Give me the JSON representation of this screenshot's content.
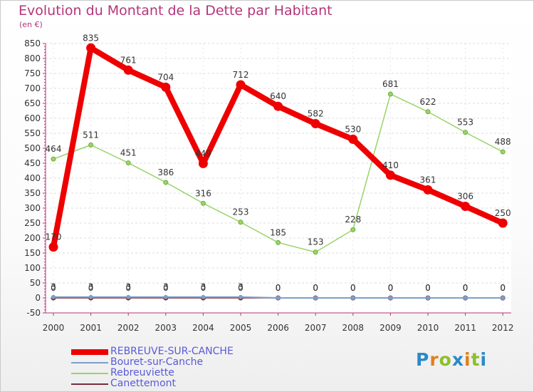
{
  "title": "Evolution du Montant de la Dette par Habitant",
  "subtitle": "(en €)",
  "logo": {
    "letters": [
      "P",
      "r",
      "o",
      "x",
      "i",
      "t",
      "i"
    ],
    "colors": [
      "#2a8ac9",
      "#e0801c",
      "#8bbf2c",
      "#2a8ac9",
      "#e0801c",
      "#8bbf2c",
      "#2a8ac9"
    ]
  },
  "chart_data": {
    "type": "line",
    "title": "Evolution du Montant de la Dette par Habitant",
    "ylabel": "(en €)",
    "xlabel": "",
    "ylim": [
      -50,
      850
    ],
    "yticks": [
      -50,
      0,
      50,
      100,
      150,
      200,
      250,
      300,
      350,
      400,
      450,
      500,
      550,
      600,
      650,
      700,
      750,
      800,
      850
    ],
    "categories": [
      "2000",
      "2001",
      "2002",
      "2003",
      "2004",
      "2005",
      "2006",
      "2007",
      "2008",
      "2009",
      "2010",
      "2011",
      "2012"
    ],
    "series": [
      {
        "name": "REBREUVE-SUR-CANCHE",
        "color": "#ee0000",
        "values": [
          170,
          835,
          761,
          704,
          449,
          712,
          640,
          582,
          530,
          410,
          361,
          306,
          250
        ],
        "labels": [
          "170",
          "835",
          "761",
          "704",
          "449",
          "712",
          "640",
          "582",
          "530",
          "410",
          "361",
          "306",
          "250"
        ]
      },
      {
        "name": "Bouret-sur-Canche",
        "color": "#7aa0c8",
        "values": [
          3,
          3,
          3,
          3,
          3,
          3,
          0,
          0,
          0,
          0,
          0,
          0,
          0
        ],
        "labels": [
          "3",
          "3",
          "3",
          "3",
          "3",
          "3",
          "0",
          "0",
          "0",
          "0",
          "0",
          "0",
          "0"
        ]
      },
      {
        "name": "Rebreuviette",
        "color": "#99d46a",
        "values": [
          464,
          511,
          451,
          386,
          316,
          253,
          185,
          153,
          228,
          681,
          622,
          553,
          488
        ],
        "labels": [
          "464",
          "511",
          "451",
          "386",
          "316",
          "253",
          "185",
          "153",
          "228",
          "681",
          "622",
          "553",
          "488"
        ]
      },
      {
        "name": "Canettemont",
        "color": "#7a2e3c",
        "values": [
          0,
          0,
          0,
          0,
          0,
          0,
          0,
          0,
          0,
          0,
          0,
          0,
          0
        ],
        "labels": [
          "0",
          "0",
          "0",
          "0",
          "0",
          "0",
          "0",
          "0",
          "0",
          "0",
          "0",
          "0",
          "0"
        ]
      }
    ],
    "legend": "bottom-left"
  }
}
